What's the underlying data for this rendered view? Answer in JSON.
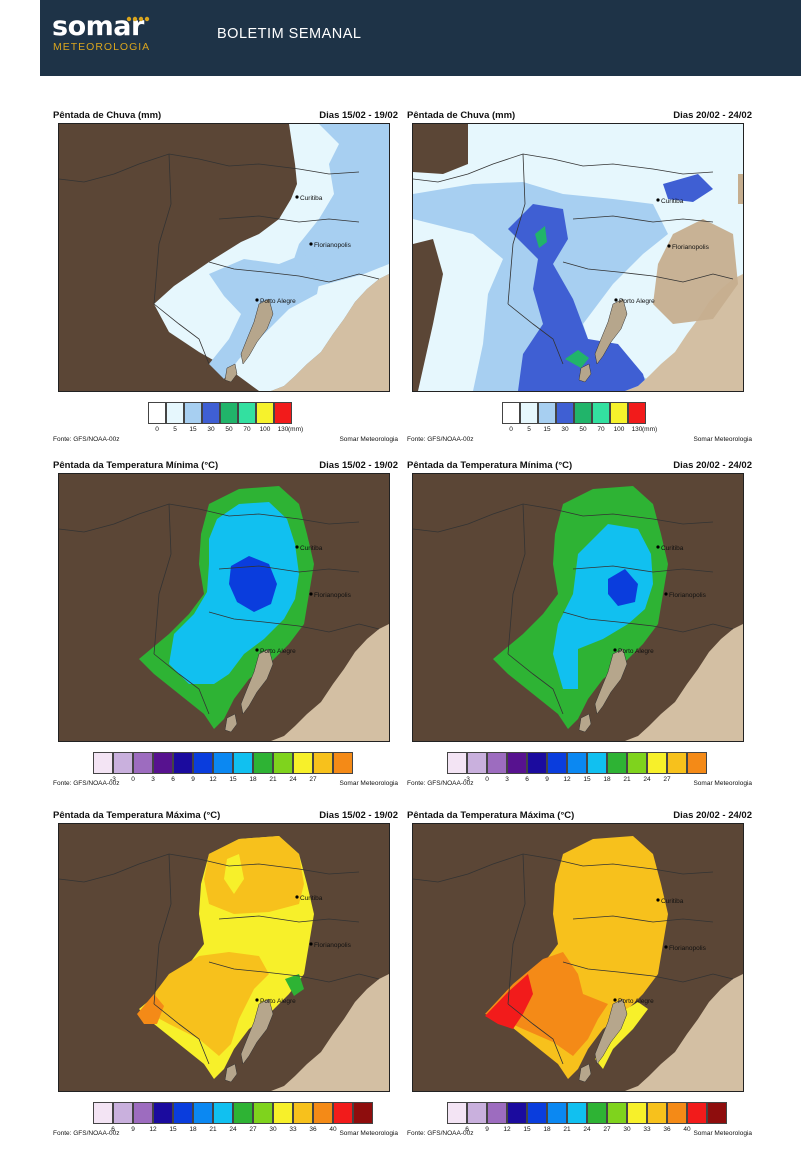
{
  "header": {
    "logo_word": "somar",
    "logo_sub": "METEOROLOGIA",
    "title": "BOLETIM SEMANAL",
    "colors": {
      "bar": "#1e3347",
      "accent": "#d9a51e"
    }
  },
  "source_text": "Fonte: GFS/NOAA-00z",
  "credit_text": "Somar Meteorologia",
  "cities": [
    "Curitiba",
    "Florianopolis",
    "Porto Alegre"
  ],
  "panels": [
    {
      "title": "Pêntada de Chuva (mm)",
      "dates": "Dias 15/02 - 19/02"
    },
    {
      "title": "Pêntada de Chuva (mm)",
      "dates": "Dias 20/02 - 24/02"
    },
    {
      "title": "Pêntada da Temperatura Mínima (°C)",
      "dates": "Dias 15/02 - 19/02"
    },
    {
      "title": "Pêntada da Temperatura Mínima (°C)",
      "dates": "Dias 20/02 - 24/02"
    },
    {
      "title": "Pêntada da Temperatura Máxima (°C)",
      "dates": "Dias 15/02 - 19/02"
    },
    {
      "title": "Pêntada da Temperatura Máxima (°C)",
      "dates": "Dias 20/02 - 24/02"
    }
  ],
  "scales": {
    "rain": {
      "ticks": [
        "0",
        "5",
        "15",
        "30",
        "50",
        "70",
        "100",
        "130"
      ],
      "unit": "(mm)",
      "colors": [
        "#ffffff",
        "#e6f7fd",
        "#a7cff1",
        "#3f5fd3",
        "#21b46a",
        "#33e0a0",
        "#f6f22c",
        "#f21b1b"
      ]
    },
    "tmin": {
      "ticks": [
        "-3",
        "0",
        "3",
        "6",
        "9",
        "12",
        "15",
        "18",
        "21",
        "24",
        "27"
      ],
      "colors": [
        "#f3e4f4",
        "#c9b0dd",
        "#9d6cbf",
        "#57128f",
        "#1b0b9e",
        "#0a3ddd",
        "#0b88f2",
        "#11c0f0",
        "#2eb334",
        "#7fd31d",
        "#f7f02a",
        "#f7c11c",
        "#f48a17"
      ]
    },
    "tmax": {
      "ticks": [
        "6",
        "9",
        "12",
        "15",
        "18",
        "21",
        "24",
        "27",
        "30",
        "33",
        "36",
        "40"
      ],
      "colors": [
        "#f3e4f4",
        "#c9b0dd",
        "#9d6cbf",
        "#1b0b9e",
        "#0a3ddd",
        "#0b88f2",
        "#11c0f0",
        "#2eb334",
        "#7fd31d",
        "#f7f02a",
        "#f7c11c",
        "#f48a17",
        "#f21b1b",
        "#8e0d0d"
      ]
    }
  },
  "legend_colors": {
    "land": "#5b4636",
    "ocean": "#d3bfa3",
    "lagoon": "#b6a68c"
  }
}
